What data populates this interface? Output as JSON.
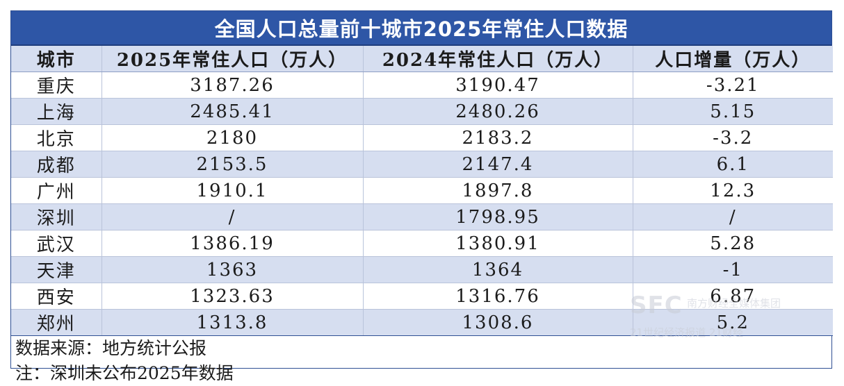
{
  "title": "全国人口总量前十城市2025年常住人口数据",
  "headers": [
    "城市",
    "2025年常住人口（万人）",
    "2024年常住人口（万人）",
    "人口增量（万人）"
  ],
  "rows": [
    [
      "重庆",
      "3187.26",
      "3190.47",
      "-3.21"
    ],
    [
      "上海",
      "2485.41",
      "2480.26",
      "5.15"
    ],
    [
      "北京",
      "2180",
      "2183.2",
      "-3.2"
    ],
    [
      "成都",
      "2153.5",
      "2147.4",
      "6.1"
    ],
    [
      "广州",
      "1910.1",
      "1897.8",
      "12.3"
    ],
    [
      "深圳",
      "/",
      "1798.95",
      "/"
    ],
    [
      "武汉",
      "1386.19",
      "1380.91",
      "5.28"
    ],
    [
      "天津",
      "1363",
      "1364",
      "-1"
    ],
    [
      "西安",
      "1323.63",
      "1316.76",
      "6.87"
    ],
    [
      "郑州",
      "1313.8",
      "1308.6",
      "5.2"
    ]
  ],
  "notes": {
    "source": "数据来源：地方统计公报",
    "note": "注：深圳未公布2025年数据"
  },
  "watermark": {
    "brand": "SFC",
    "group": "南方财经全媒体集团",
    "line2": "21世纪经济报道 21财经"
  },
  "colors": {
    "title_bg": "#2e56a6",
    "stripe": "#d6def0",
    "border": "#2e4f93"
  }
}
